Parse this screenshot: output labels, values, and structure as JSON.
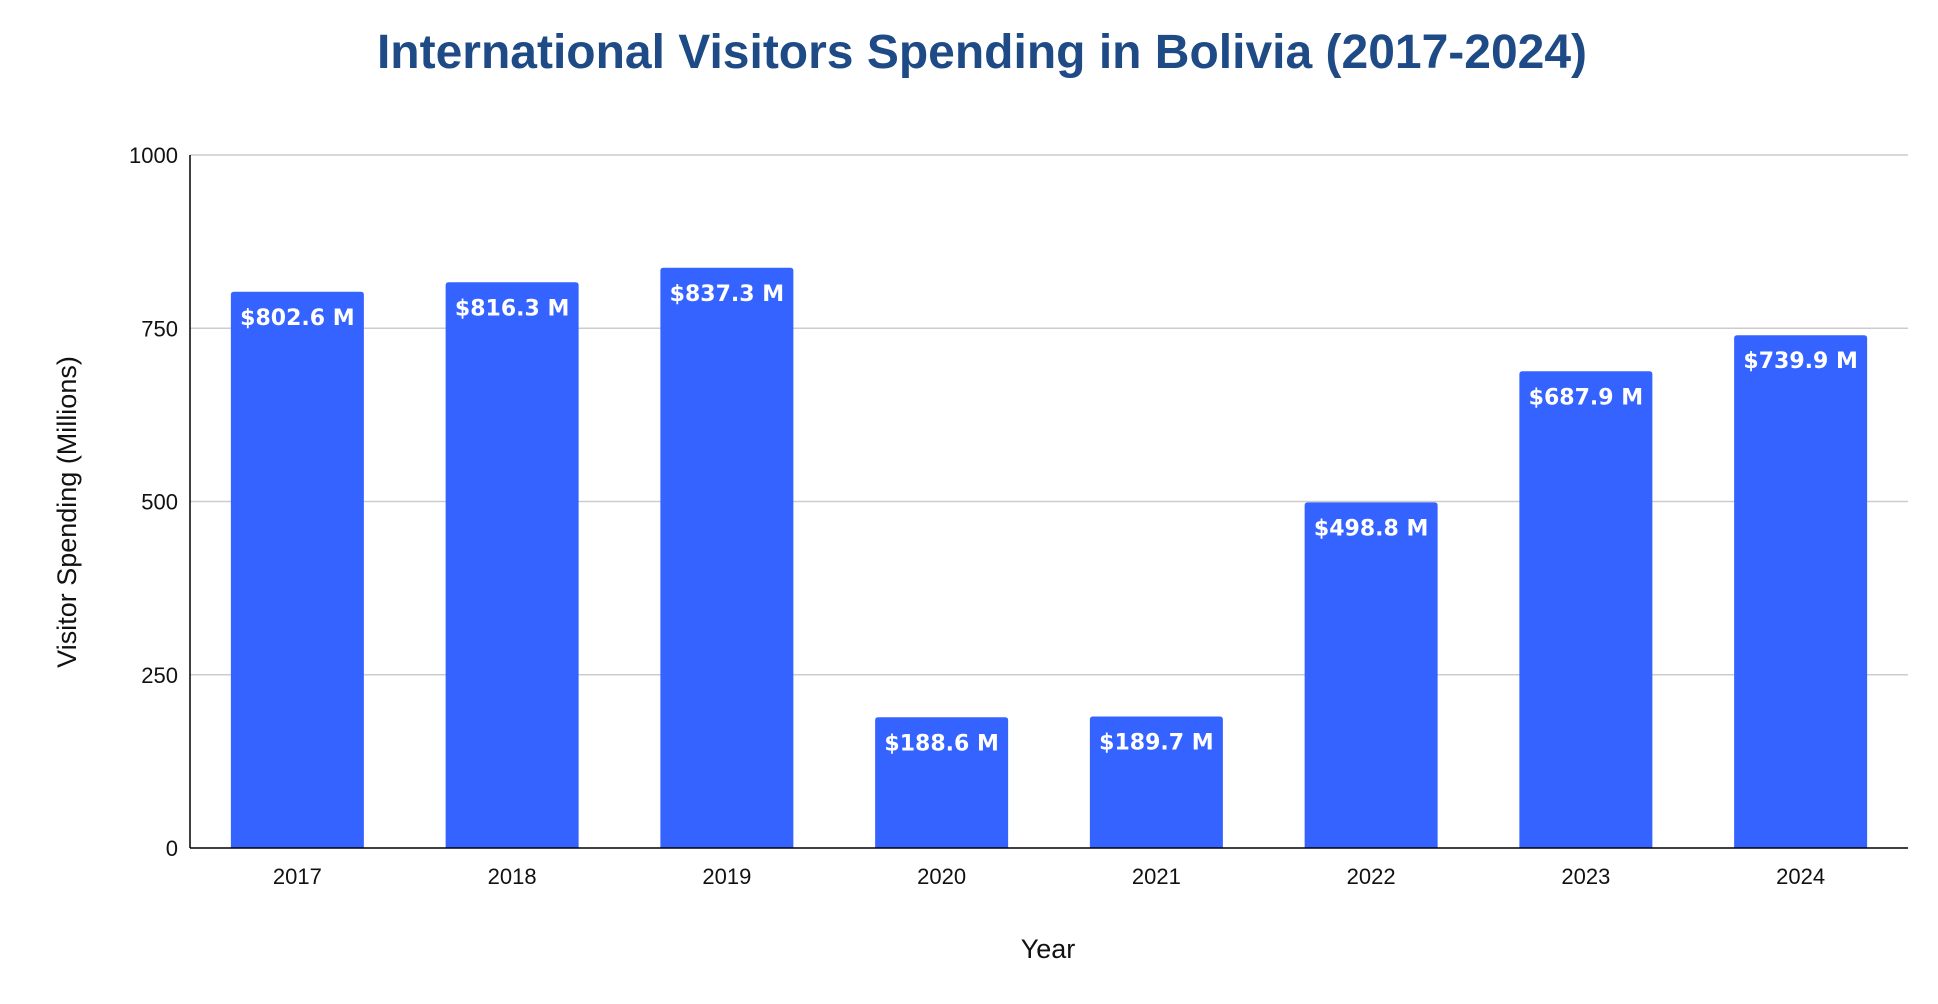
{
  "chart_data": {
    "type": "bar",
    "title": "International Visitors Spending in Bolivia (2017-2024)",
    "xlabel": "Year",
    "ylabel": "Visitor Spending (Millions)",
    "categories": [
      "2017",
      "2018",
      "2019",
      "2020",
      "2021",
      "2022",
      "2023",
      "2024"
    ],
    "values": [
      802.6,
      816.3,
      837.3,
      188.6,
      189.7,
      498.8,
      687.9,
      739.9
    ],
    "data_labels": [
      "$802.6 M",
      "$816.3 M",
      "$837.3 M",
      "$188.6 M",
      "$189.7 M",
      "$498.8 M",
      "$687.9 M",
      "$739.9 M"
    ],
    "ylim": [
      0,
      1000
    ],
    "yticks": [
      0,
      250,
      500,
      750,
      1000
    ],
    "grid": true,
    "legend": "none",
    "colors": {
      "bar": "#3563ff",
      "title": "#1e4a86",
      "grid": "#cccccc",
      "axis": "#000000"
    }
  }
}
